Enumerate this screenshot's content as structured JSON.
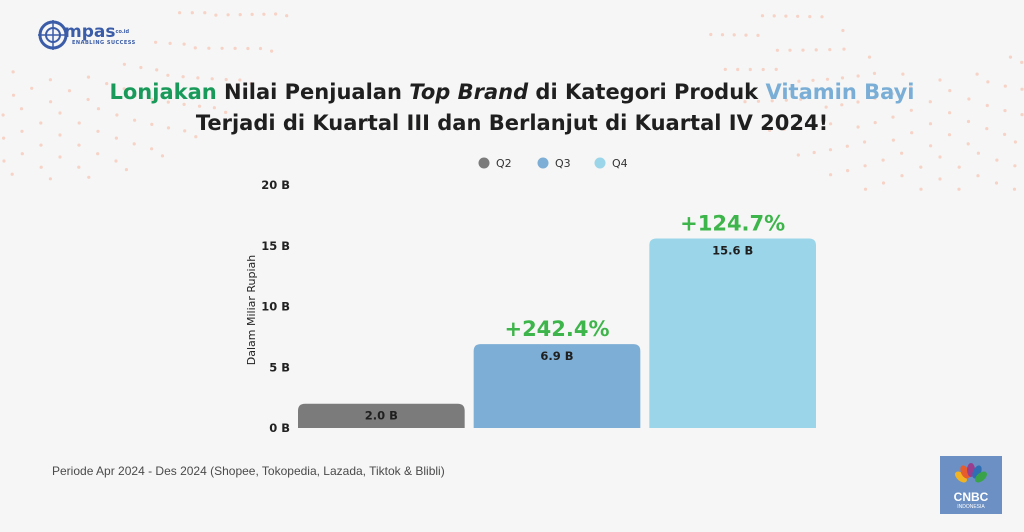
{
  "brand": {
    "name": "mpas",
    "domain": "co.id",
    "tagline": "ENABLING SUCCESS"
  },
  "title": {
    "line1_highlight": "Lonjakan",
    "line1_mid": " Nilai Penjualan ",
    "line1_italic": "Top Brand",
    "line1_rest": " di Kategori Produk ",
    "line1_highlight2": "Vitamin Bayi",
    "line2": "Terjadi di Kuartal III dan Berlanjut di Kuartal IV 2024!"
  },
  "colors": {
    "q2": "#7b7b7b",
    "q3": "#7daed5",
    "q4": "#9bd5ea",
    "growth": "#3db54a",
    "title_green": "#1a9a5a",
    "title_blue": "#7aaed6"
  },
  "chart_data": {
    "type": "bar",
    "categories": [
      "Q2",
      "Q3",
      "Q4"
    ],
    "values": [
      2.0,
      6.9,
      15.6
    ],
    "value_labels": [
      "2.0 B",
      "6.9 B",
      "15.6 B"
    ],
    "growth_labels": [
      "",
      "+242.4%",
      "+124.7%"
    ],
    "legend": [
      "Q2",
      "Q3",
      "Q4"
    ],
    "legend_position": "top-center",
    "ylabel": "Dalam Miliar Rupiah",
    "ylim": [
      0,
      20
    ],
    "yticks": [
      0,
      5,
      10,
      15,
      20
    ],
    "ytick_labels": [
      "0 B",
      "5 B",
      "10 B",
      "15 B",
      "20 B"
    ],
    "grid": false
  },
  "footnote": "Periode Apr 2024 - Des 2024 (Shopee, Tokopedia, Lazada, Tiktok & Blibli)",
  "source_logo": {
    "name": "CNBC",
    "sub": "INDONESIA"
  }
}
